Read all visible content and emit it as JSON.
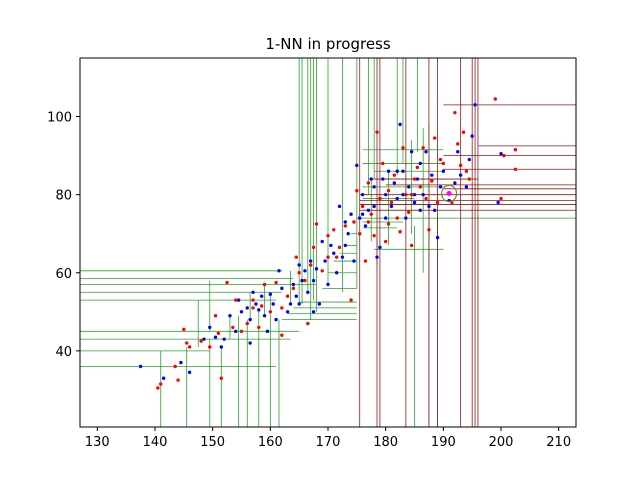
{
  "chart_data": {
    "type": "scatter",
    "title": "1-NN in progress",
    "xlabel": "",
    "ylabel": "",
    "xlim": [
      127,
      213
    ],
    "ylim": [
      20.5,
      115
    ],
    "xticks": [
      130,
      140,
      150,
      160,
      170,
      180,
      190,
      200,
      210
    ],
    "yticks": [
      40,
      60,
      80,
      100
    ],
    "grid": false,
    "legend": "none",
    "colors": {
      "blue_points": "#0000ff",
      "red_points": "#ff0000",
      "green_splits": "#2ca02c",
      "red_splits": "#8b1a1a",
      "query_point": "#ff00ff",
      "query_circle": "#6b8e23"
    },
    "query": {
      "x": 191,
      "y": 80.3,
      "radius": 1.3
    },
    "series_blue": [
      [
        137.5,
        36
      ],
      [
        141.5,
        33
      ],
      [
        144.5,
        37
      ],
      [
        146,
        34.5
      ],
      [
        148.5,
        43
      ],
      [
        149.5,
        46
      ],
      [
        150.5,
        43.5
      ],
      [
        151.5,
        41
      ],
      [
        152,
        43
      ],
      [
        153,
        49
      ],
      [
        154,
        45
      ],
      [
        154.5,
        53
      ],
      [
        155,
        50
      ],
      [
        156,
        51
      ],
      [
        156.5,
        48
      ],
      [
        157,
        55
      ],
      [
        157.5,
        52
      ],
      [
        158,
        50.5
      ],
      [
        158.5,
        54
      ],
      [
        159,
        49
      ],
      [
        160,
        54.5
      ],
      [
        160.5,
        52
      ],
      [
        161,
        48
      ],
      [
        161.5,
        60.5
      ],
      [
        162,
        56
      ],
      [
        163,
        50
      ],
      [
        163.5,
        52
      ],
      [
        164,
        57
      ],
      [
        164.5,
        54
      ],
      [
        165,
        62
      ],
      [
        165.5,
        58
      ],
      [
        166,
        60.5
      ],
      [
        166.5,
        55
      ],
      [
        167,
        63
      ],
      [
        167.5,
        58
      ],
      [
        168,
        61
      ],
      [
        168.5,
        52
      ],
      [
        169,
        68
      ],
      [
        169.5,
        63
      ],
      [
        170,
        57
      ],
      [
        170.5,
        67
      ],
      [
        171,
        65
      ],
      [
        171.5,
        60
      ],
      [
        172,
        77
      ],
      [
        172.5,
        64
      ],
      [
        173,
        67
      ],
      [
        173.5,
        70
      ],
      [
        174,
        75
      ],
      [
        174.5,
        63
      ],
      [
        175,
        87.5
      ],
      [
        175.5,
        74
      ],
      [
        176,
        80
      ],
      [
        176.5,
        72
      ],
      [
        177,
        76
      ],
      [
        177.5,
        84
      ],
      [
        178,
        82
      ],
      [
        178.5,
        64
      ],
      [
        179,
        66.5
      ],
      [
        179.5,
        84
      ],
      [
        180,
        74
      ],
      [
        180.5,
        86
      ],
      [
        181,
        77
      ],
      [
        181.5,
        83
      ],
      [
        182,
        86
      ],
      [
        182.5,
        98
      ],
      [
        183,
        80
      ],
      [
        183.5,
        74
      ],
      [
        184,
        82
      ],
      [
        184.5,
        91
      ],
      [
        185,
        78
      ],
      [
        185.5,
        84
      ],
      [
        186,
        88
      ],
      [
        186.5,
        80
      ],
      [
        187,
        91
      ],
      [
        187.5,
        77
      ],
      [
        188,
        85
      ],
      [
        188.5,
        76
      ],
      [
        189,
        69
      ],
      [
        189.5,
        82
      ],
      [
        190,
        86
      ],
      [
        191,
        78.5
      ],
      [
        192,
        83
      ],
      [
        192.5,
        91
      ],
      [
        193,
        85
      ],
      [
        194,
        82
      ],
      [
        194.5,
        89
      ],
      [
        195,
        95
      ],
      [
        195.5,
        103
      ],
      [
        199.5,
        78
      ],
      [
        200,
        90.5
      ],
      [
        176,
        75
      ],
      [
        178,
        77
      ],
      [
        182,
        79
      ],
      [
        186,
        76
      ],
      [
        173,
        73
      ],
      [
        167.5,
        50
      ],
      [
        165,
        52
      ],
      [
        159.5,
        45
      ],
      [
        156.5,
        42
      ],
      [
        183,
        86
      ],
      [
        185,
        80
      ],
      [
        180,
        80
      ]
    ],
    "series_red": [
      [
        140.5,
        30.5
      ],
      [
        141,
        31.5
      ],
      [
        143.5,
        36
      ],
      [
        144,
        32.5
      ],
      [
        145,
        45.5
      ],
      [
        145.5,
        42
      ],
      [
        146,
        41
      ],
      [
        148,
        42.5
      ],
      [
        150.5,
        49
      ],
      [
        151,
        44.5
      ],
      [
        151.5,
        33
      ],
      [
        152.5,
        57.5
      ],
      [
        153.5,
        46
      ],
      [
        154,
        53
      ],
      [
        155,
        45
      ],
      [
        156,
        47
      ],
      [
        157,
        53
      ],
      [
        158,
        46
      ],
      [
        158.5,
        51.5
      ],
      [
        159,
        57
      ],
      [
        160,
        50
      ],
      [
        161,
        57.5
      ],
      [
        162,
        51
      ],
      [
        163,
        54
      ],
      [
        164,
        56
      ],
      [
        164.5,
        64
      ],
      [
        165,
        60
      ],
      [
        166,
        58
      ],
      [
        166.5,
        47
      ],
      [
        167,
        62
      ],
      [
        167.5,
        66.5
      ],
      [
        168,
        72.5
      ],
      [
        169,
        60.5
      ],
      [
        170,
        69.5
      ],
      [
        171,
        71
      ],
      [
        171.5,
        64
      ],
      [
        172,
        66.5
      ],
      [
        173,
        72
      ],
      [
        174,
        53
      ],
      [
        174.5,
        73
      ],
      [
        175,
        81
      ],
      [
        175.5,
        70
      ],
      [
        176,
        77
      ],
      [
        176.5,
        63
      ],
      [
        177,
        83
      ],
      [
        177.5,
        75
      ],
      [
        178,
        69.5
      ],
      [
        178.5,
        96
      ],
      [
        179,
        79
      ],
      [
        179.5,
        88
      ],
      [
        180,
        68
      ],
      [
        180.5,
        72.5
      ],
      [
        181,
        78
      ],
      [
        181.5,
        85
      ],
      [
        182,
        74
      ],
      [
        182.5,
        70.5
      ],
      [
        183,
        92
      ],
      [
        183.5,
        80
      ],
      [
        184,
        75.5
      ],
      [
        184.5,
        67
      ],
      [
        185,
        84
      ],
      [
        185.5,
        87
      ],
      [
        186,
        82
      ],
      [
        186.5,
        92
      ],
      [
        187,
        79
      ],
      [
        187.5,
        71
      ],
      [
        188,
        83.5
      ],
      [
        188.5,
        94.5
      ],
      [
        189,
        78
      ],
      [
        189.5,
        89
      ],
      [
        190,
        88
      ],
      [
        191.5,
        78
      ],
      [
        192,
        101
      ],
      [
        192.5,
        93
      ],
      [
        193,
        87.5
      ],
      [
        193.5,
        96
      ],
      [
        194,
        86
      ],
      [
        194.5,
        84
      ],
      [
        199,
        104.5
      ],
      [
        200,
        79
      ],
      [
        200.5,
        90
      ],
      [
        202.5,
        91.5
      ],
      [
        202.5,
        86.5
      ],
      [
        184.5,
        80
      ],
      [
        180.5,
        81
      ],
      [
        177,
        73
      ],
      [
        170,
        64
      ],
      [
        162,
        44
      ],
      [
        157,
        51
      ],
      [
        149.5,
        41
      ]
    ],
    "green_vlines": [
      [
        141,
        20.5,
        40
      ],
      [
        145.5,
        20.5,
        41
      ],
      [
        149.5,
        20.5,
        43
      ],
      [
        151.5,
        20.5,
        41
      ],
      [
        154.5,
        20.5,
        49
      ],
      [
        156,
        20.5,
        48
      ],
      [
        158,
        20.5,
        50.5
      ],
      [
        160,
        20.5,
        54.5
      ],
      [
        161.5,
        20.5,
        48
      ],
      [
        147.5,
        41,
        53
      ],
      [
        149.5,
        45,
        58
      ],
      [
        153,
        43,
        49
      ],
      [
        156.5,
        48,
        55
      ],
      [
        159,
        49,
        57
      ],
      [
        163.5,
        52,
        60.5
      ],
      [
        165,
        52,
        115
      ],
      [
        165.5,
        52,
        115
      ],
      [
        166.5,
        55,
        115
      ],
      [
        167,
        48,
        115
      ],
      [
        167.5,
        53,
        115
      ],
      [
        168,
        50,
        115
      ],
      [
        170,
        57,
        115
      ],
      [
        172.5,
        55,
        115
      ],
      [
        175,
        56,
        115
      ],
      [
        177,
        80,
        115
      ],
      [
        178,
        84,
        115
      ],
      [
        182,
        85,
        115
      ],
      [
        183,
        88,
        115
      ],
      [
        185.5,
        91,
        115
      ],
      [
        177.5,
        68,
        84
      ],
      [
        180.5,
        67,
        86
      ],
      [
        184.5,
        70,
        94
      ],
      [
        186.5,
        60,
        97
      ],
      [
        187.5,
        68,
        98
      ],
      [
        189,
        20.5,
        75
      ],
      [
        185,
        20.5,
        72
      ],
      [
        187.5,
        20.5,
        74
      ],
      [
        178.5,
        62,
        71
      ]
    ],
    "green_hlines": [
      [
        127,
        161,
        36
      ],
      [
        127,
        163.5,
        43
      ],
      [
        127,
        165,
        45
      ],
      [
        127,
        149.5,
        40
      ],
      [
        127,
        162,
        55
      ],
      [
        127,
        161,
        53
      ],
      [
        127,
        162,
        60.5
      ],
      [
        127,
        164,
        58.5
      ],
      [
        127,
        168,
        57
      ],
      [
        175,
        213,
        74
      ],
      [
        162,
        175,
        48
      ],
      [
        163,
        175,
        49.5
      ],
      [
        164,
        175,
        51
      ],
      [
        165,
        175,
        52.5
      ],
      [
        169,
        175,
        56
      ],
      [
        170,
        175,
        60
      ],
      [
        171,
        175,
        63
      ],
      [
        172,
        175,
        65
      ],
      [
        173,
        175,
        67
      ],
      [
        174,
        175,
        70
      ],
      [
        176,
        190,
        88
      ],
      [
        176,
        190,
        91.5
      ],
      [
        178,
        190,
        86
      ],
      [
        177,
        190,
        84
      ],
      [
        176,
        190,
        82
      ],
      [
        176,
        185,
        79
      ],
      [
        176,
        186,
        76
      ],
      [
        176,
        183,
        73
      ],
      [
        176,
        182,
        71.5
      ],
      [
        176,
        189,
        77.5
      ],
      [
        178,
        190,
        66
      ]
    ],
    "red_vlines": [
      [
        175.5,
        20.5,
        115
      ],
      [
        178.5,
        20.5,
        115
      ],
      [
        179,
        20.5,
        115
      ],
      [
        183.5,
        20.5,
        115
      ],
      [
        187.5,
        20.5,
        115
      ],
      [
        189,
        20.5,
        115
      ],
      [
        193,
        20.5,
        115
      ],
      [
        195,
        20.5,
        115
      ],
      [
        196,
        20.5,
        115
      ],
      [
        195.5,
        20.5,
        115
      ]
    ],
    "red_hlines": [
      [
        190,
        213,
        103
      ],
      [
        196,
        213,
        92.5
      ],
      [
        190,
        213,
        90
      ],
      [
        190,
        213,
        86.5
      ],
      [
        190,
        213,
        81.5
      ],
      [
        175.5,
        213,
        80
      ],
      [
        175.5,
        213,
        78.5
      ],
      [
        175.5,
        213,
        77.5
      ],
      [
        175.5,
        213,
        76
      ],
      [
        180,
        213,
        82.5
      ],
      [
        178,
        196,
        84
      ]
    ]
  }
}
